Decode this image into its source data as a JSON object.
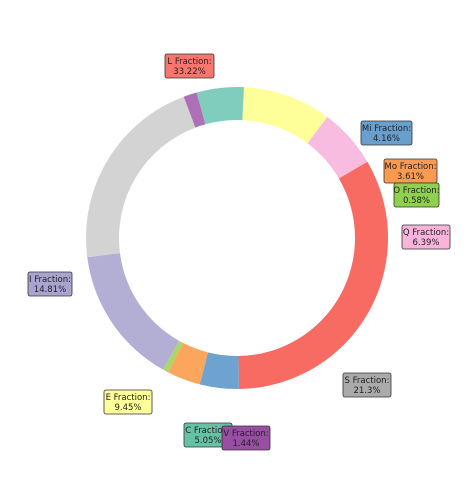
{
  "chart_data": {
    "type": "pie",
    "variant": "donut",
    "slices": [
      {
        "label": "S Fraction:",
        "pct": "21.3%",
        "value": 21.3,
        "color": "#aaaaaa"
      },
      {
        "label": "L Fraction:",
        "pct": "33.22%",
        "value": 33.22,
        "color": "#f8766d"
      },
      {
        "label": "C Fraction:",
        "pct": "5.05%",
        "value": 5.05,
        "color": "#66c2a5"
      },
      {
        "label": "V Fraction:",
        "pct": "1.44%",
        "value": 1.44,
        "color": "#984ea3"
      },
      {
        "label": "E Fraction:",
        "pct": "9.45%",
        "value": 9.45,
        "color": "#ffff99"
      },
      {
        "label": "Q Fraction:",
        "pct": "6.39%",
        "value": 6.39,
        "color": "#f9b4dc"
      },
      {
        "label": "I Fraction:",
        "pct": "14.81%",
        "value": 14.81,
        "color": "#a9a4cf"
      },
      {
        "label": "O Fraction:",
        "pct": "0.58%",
        "value": 0.58,
        "color": "#8fd14f"
      },
      {
        "label": "Mo Fraction:",
        "pct": "3.61%",
        "value": 3.61,
        "color": "#fb9a50"
      },
      {
        "label": "Mi Fraction:",
        "pct": "4.16%",
        "value": 4.16,
        "color": "#6a9fcd"
      }
    ],
    "ring_colors": {
      "S": "#d3d3d3",
      "L": "#f76b62",
      "C": "#80cdbd",
      "V": "#ad6fb5",
      "E": "#ffff99",
      "Q": "#f7bce0",
      "I": "#b3aed4",
      "O": "#a6d96a",
      "Mo": "#fca55d",
      "Mi": "#6fa3cf"
    }
  }
}
